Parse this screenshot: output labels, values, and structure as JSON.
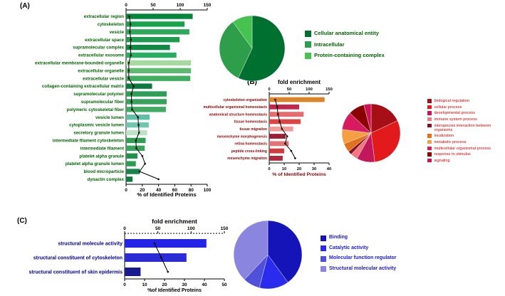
{
  "panels": {
    "a": {
      "label": "(A)"
    },
    "b": {
      "label": "(B)"
    },
    "c": {
      "label": "(C)"
    }
  },
  "chart_data": [
    {
      "id": "panelA_bar",
      "type": "bar",
      "orientation": "horizontal",
      "title": "",
      "categories": [
        "extracellular region",
        "cytoskeleton",
        "vesicle",
        "extracellular space",
        "supramolecular complex",
        "extracellular exosome",
        "extracellular membrane-bounded organelle",
        "extracellular organelle",
        "extracellular vesicle",
        "collagen-containing extracellular matrix",
        "supramolecular polymer",
        "supramolecular fiber",
        "polymeric cytoskeletal fiber",
        "vesicle lumen",
        "cytoplasmic vesicle lumen",
        "secretory granule lumen",
        "intermediate filament cytoskeleton",
        "intermediate filament",
        "platelet alpha granule",
        "platelet alpha granule lumen",
        "blood microparticle",
        "dynactin complex"
      ],
      "series": [
        {
          "name": "% of Identified Proteins",
          "values": [
            82,
            72,
            78,
            66,
            54,
            62,
            80,
            80,
            79,
            32,
            50,
            50,
            49,
            29,
            28,
            26,
            24,
            23,
            14,
            12,
            17,
            8
          ]
        },
        {
          "name": "fold enrichment",
          "render": "line",
          "values": [
            6,
            8,
            7,
            9,
            8,
            9,
            5,
            5,
            5,
            14,
            10,
            10,
            11,
            22,
            23,
            24,
            18,
            19,
            30,
            35,
            25,
            60
          ]
        }
      ],
      "bar_colors": [
        "#00873C",
        "#19A24C",
        "#2FA85C",
        "#1F9B4F",
        "#0E8A45",
        "#27AE60",
        "#A6D9A0",
        "#5CBB6E",
        "#3FAE5E",
        "#0B7A3E",
        "#2E9E55",
        "#36A35C",
        "#40AA62",
        "#5FC0A8",
        "#6FC7B0",
        "#BCE3C6",
        "#2F9E52",
        "#38A55A",
        "#1F9149",
        "#2B9C52",
        "#17854A",
        "#0F7A40"
      ],
      "top_axis": {
        "label": "",
        "range": [
          0,
          150
        ],
        "ticks": [
          0,
          50,
          100,
          150
        ]
      },
      "bottom_axis": {
        "label": "% of Identified Proteins",
        "range": [
          0,
          100
        ],
        "ticks": [
          0,
          20,
          40,
          60,
          80,
          100
        ]
      }
    },
    {
      "id": "panelA_pie",
      "type": "pie",
      "labels": [
        "Cellular anatomical entity",
        "Intracellular",
        "Protein-containing complex"
      ],
      "values": [
        57,
        33,
        10
      ],
      "colors": [
        "#007030",
        "#2E9E4A",
        "#45C24F"
      ],
      "legend_position": "right"
    },
    {
      "id": "panelB_bar",
      "type": "bar",
      "orientation": "horizontal",
      "title": "fold enrichment",
      "categories": [
        "cytoskeleton organization",
        "multicellular organismal homeostasis",
        "anatomical structure homeostasis",
        "tissue homeostasis",
        "tissue migration",
        "mesenchyme morphogenesis",
        "retina homeostasis",
        "peptide cross-linking",
        "mesenchyme migration"
      ],
      "series": [
        {
          "name": "% of Identified Proteins",
          "values": [
            37,
            20,
            23,
            21,
            16,
            11,
            13,
            10,
            9
          ]
        },
        {
          "name": "fold enrichment",
          "render": "line",
          "values": [
            15,
            20,
            22,
            26,
            32,
            45,
            40,
            55,
            65
          ]
        }
      ],
      "bar_colors": [
        "#DD8427",
        "#C2274B",
        "#E86A6A",
        "#DF4444",
        "#F09A9A",
        "#9C1F35",
        "#E57373",
        "#D23B3B",
        "#B02A3C"
      ],
      "top_axis": {
        "label": "fold enrichment",
        "range": [
          0,
          150
        ],
        "ticks": [
          0,
          50,
          100,
          150
        ]
      },
      "bottom_axis": {
        "label": "% of Identified Proteins",
        "range": [
          0,
          40
        ],
        "ticks": [
          0,
          10,
          20,
          30,
          40
        ]
      }
    },
    {
      "id": "panelB_pie",
      "type": "pie",
      "labels": [
        "biological regulation",
        "cellular process",
        "developmental process",
        "immune system process",
        "interspecies interaction between organisms",
        "localization",
        "metabolic process",
        "multicellular organismal process",
        "response to stimulus",
        "signaling"
      ],
      "values": [
        18,
        30,
        10,
        4,
        2,
        5,
        8,
        10,
        9,
        4
      ],
      "colors": [
        "#A50F15",
        "#E31A1C",
        "#C2185B",
        "#F4777F",
        "#7F1025",
        "#E2711D",
        "#F59E42",
        "#D81B60",
        "#8B0000",
        "#CE1256"
      ],
      "legend_position": "right"
    },
    {
      "id": "panelC_bar",
      "type": "bar",
      "orientation": "horizontal",
      "title": "fold enrichment",
      "categories": [
        "structural molecule activity",
        "structural constituent of cytoskeleton",
        "structural constituent of skin epidermis"
      ],
      "series": [
        {
          "name": "% of Identified Proteins",
          "values": [
            41,
            31,
            8
          ]
        },
        {
          "name": "fold enrichment",
          "render": "line",
          "values": [
            45,
            55,
            65
          ]
        }
      ],
      "bar_colors": [
        "#2424E8",
        "#2B2BD8",
        "#191990"
      ],
      "top_axis": {
        "label": "fold enrichment",
        "range": [
          0,
          150
        ],
        "ticks": [
          0,
          50,
          100,
          150
        ]
      },
      "bottom_axis": {
        "label": "%of Identified Proteins",
        "range": [
          0,
          50
        ],
        "ticks": [
          0,
          10,
          20,
          30,
          40,
          50
        ]
      }
    },
    {
      "id": "panelC_pie",
      "type": "pie",
      "labels": [
        "Binding",
        "Catalytic activity",
        "Molecular function regulator",
        "Structural molecular activity"
      ],
      "values": [
        40,
        14,
        8,
        38
      ],
      "colors": [
        "#1414B8",
        "#2B2BEE",
        "#5050D8",
        "#8A86E0"
      ],
      "legend_position": "right"
    }
  ]
}
